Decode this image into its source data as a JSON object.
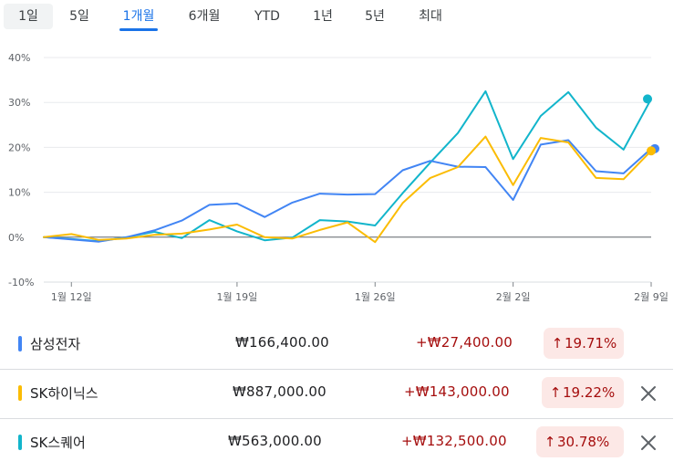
{
  "tabs": [
    {
      "label": "1일"
    },
    {
      "label": "5일"
    },
    {
      "label": "1개월"
    },
    {
      "label": "6개월"
    },
    {
      "label": "YTD"
    },
    {
      "label": "1년"
    },
    {
      "label": "5년"
    },
    {
      "label": "최대"
    }
  ],
  "selected_tab": "1개월",
  "chart_data": {
    "type": "line",
    "title": "",
    "xlabel": "",
    "ylabel": "",
    "ylim": [
      -10,
      40
    ],
    "yticks": [
      "40%",
      "30%",
      "20%",
      "10%",
      "0%",
      "-10%"
    ],
    "xticks": [
      "1월 12일",
      "1월 19일",
      "1월 26일",
      "2월 2일",
      "2월 9일"
    ],
    "grid": "horizontal, dark baseline at 0%",
    "end_markers": true,
    "series": [
      {
        "name": "삼성전자",
        "color": "#4285f4",
        "values": [
          0,
          -0.5,
          -1,
          0,
          1.5,
          3.7,
          7.2,
          7.5,
          4.5,
          7.7,
          9.7,
          9.5,
          9.6,
          14.9,
          17,
          15.7,
          15.6,
          8.3,
          20.6,
          21.6,
          14.7,
          14.2,
          19.71
        ]
      },
      {
        "name": "SK하이닉스",
        "color": "#fbbc04",
        "values": [
          0,
          0.7,
          -0.6,
          -0.3,
          0.5,
          0.8,
          1.7,
          2.8,
          0,
          -0.3,
          1.6,
          3.3,
          -1.1,
          7.6,
          13.2,
          15.6,
          22.4,
          11.6,
          22.1,
          21.1,
          13.2,
          12.9,
          19.22
        ]
      },
      {
        "name": "SK스퀘어",
        "color": "#12b5cb",
        "values": [
          0,
          -0.4,
          -0.9,
          0,
          1.2,
          -0.2,
          3.8,
          1.3,
          -0.7,
          -0.1,
          3.8,
          3.5,
          2.6,
          9.8,
          16.6,
          23.2,
          32.5,
          17.4,
          27,
          32.3,
          24.4,
          19.5,
          30.78
        ]
      }
    ]
  },
  "rows": [
    {
      "name": "삼성전자",
      "color": "#4285f4",
      "price": "₩166,400.00",
      "change": "+₩27,400.00",
      "pct": "19.71%",
      "arrow": "↑",
      "removable": false
    },
    {
      "name": "SK하이닉스",
      "color": "#fbbc04",
      "price": "₩887,000.00",
      "change": "+₩143,000.00",
      "pct": "19.22%",
      "arrow": "↑",
      "removable": true
    },
    {
      "name": "SK스퀘어",
      "color": "#12b5cb",
      "price": "₩563,000.00",
      "change": "+₩132,500.00",
      "pct": "30.78%",
      "arrow": "↑",
      "removable": true
    }
  ],
  "icons": {
    "remove": "close-icon",
    "up": "arrow-up-icon"
  }
}
